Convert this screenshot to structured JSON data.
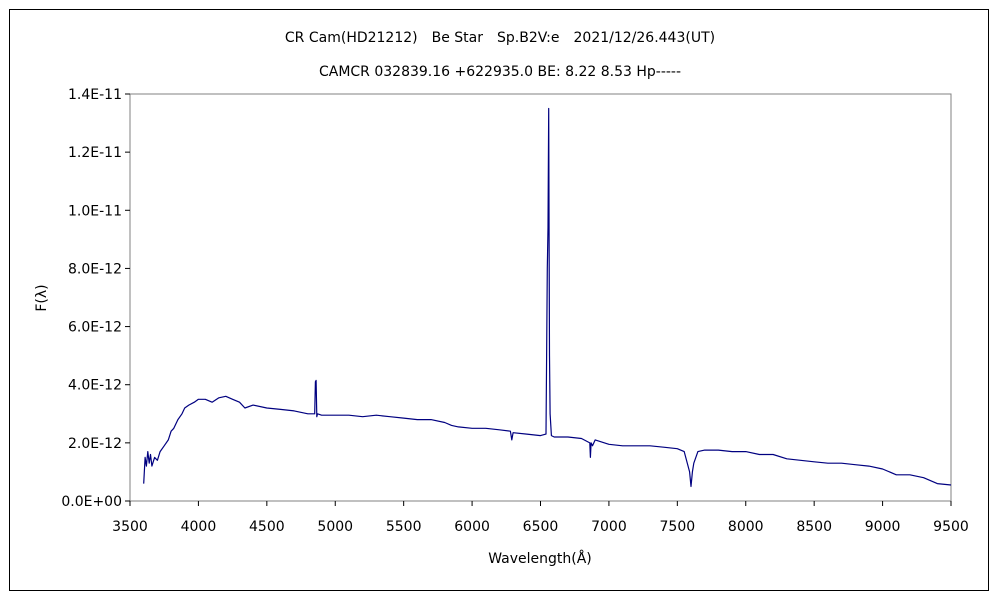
{
  "chart_data": {
    "type": "line",
    "title": "CR Cam(HD21212)　Be Star　Sp.B2V:e　2021/12/26.443(UT)",
    "subtitle": "CAMCR 032839.16 +622935.0 BE: 8.22 8.53 Hp-----",
    "xlabel": "Wavelength(Å)",
    "ylabel": "F(λ)",
    "xlim": [
      3500,
      9500
    ],
    "ylim": [
      0,
      1.4e-11
    ],
    "x_ticks": [
      3500,
      4000,
      4500,
      5000,
      5500,
      6000,
      6500,
      7000,
      7500,
      8000,
      8500,
      9000,
      9500
    ],
    "x_tick_labels": [
      "3500",
      "4000",
      "4500",
      "5000",
      "5500",
      "6000",
      "6500",
      "7000",
      "7500",
      "8000",
      "8500",
      "9000",
      "9500"
    ],
    "y_ticks": [
      0,
      2e-12,
      4e-12,
      6e-12,
      8e-12,
      1e-11,
      1.2e-11,
      1.4e-11
    ],
    "y_tick_labels": [
      "0.0E+00",
      "2.0E-12",
      "4.0E-12",
      "6.0E-12",
      "8.0E-12",
      "1.0E-11",
      "1.2E-11",
      "1.4E-11"
    ],
    "grid": false,
    "legend": "none",
    "series": [
      {
        "color": "#000080",
        "x": [
          3600,
          3610,
          3620,
          3630,
          3640,
          3650,
          3660,
          3680,
          3700,
          3720,
          3750,
          3780,
          3800,
          3820,
          3850,
          3880,
          3900,
          3930,
          3970,
          4000,
          4050,
          4100,
          4150,
          4200,
          4250,
          4300,
          4340,
          4400,
          4500,
          4600,
          4700,
          4800,
          4850,
          4855,
          4860,
          4865,
          4870,
          4900,
          5000,
          5100,
          5200,
          5300,
          5400,
          5500,
          5600,
          5700,
          5800,
          5850,
          5900,
          6000,
          6100,
          6200,
          6280,
          6290,
          6300,
          6400,
          6500,
          6540,
          6550,
          6555,
          6560,
          6563,
          6566,
          6570,
          6575,
          6580,
          6600,
          6700,
          6800,
          6860,
          6865,
          6870,
          6880,
          6900,
          7000,
          7100,
          7200,
          7300,
          7400,
          7500,
          7550,
          7590,
          7600,
          7610,
          7620,
          7650,
          7700,
          7800,
          7900,
          8000,
          8100,
          8200,
          8300,
          8400,
          8500,
          8600,
          8700,
          8800,
          8900,
          9000,
          9100,
          9200,
          9300,
          9400,
          9500
        ],
        "y": [
          6e-13,
          1.5e-12,
          1.2e-12,
          1.7e-12,
          1.3e-12,
          1.6e-12,
          1.2e-12,
          1.5e-12,
          1.4e-12,
          1.7e-12,
          1.9e-12,
          2.1e-12,
          2.4e-12,
          2.5e-12,
          2.8e-12,
          3e-12,
          3.2e-12,
          3.3e-12,
          3.4e-12,
          3.5e-12,
          3.5e-12,
          3.4e-12,
          3.55e-12,
          3.6e-12,
          3.5e-12,
          3.4e-12,
          3.2e-12,
          3.3e-12,
          3.2e-12,
          3.15e-12,
          3.1e-12,
          3e-12,
          3e-12,
          4.1e-12,
          4.15e-12,
          2.9e-12,
          3e-12,
          2.95e-12,
          2.95e-12,
          2.95e-12,
          2.9e-12,
          2.95e-12,
          2.9e-12,
          2.85e-12,
          2.8e-12,
          2.8e-12,
          2.7e-12,
          2.6e-12,
          2.55e-12,
          2.5e-12,
          2.5e-12,
          2.45e-12,
          2.4e-12,
          2.1e-12,
          2.35e-12,
          2.3e-12,
          2.25e-12,
          2.3e-12,
          8e-12,
          9.4e-12,
          1.35e-11,
          9e-12,
          5e-12,
          3e-12,
          2.6e-12,
          2.25e-12,
          2.2e-12,
          2.2e-12,
          2.15e-12,
          2e-12,
          1.5e-12,
          2e-12,
          1.9e-12,
          2.1e-12,
          1.95e-12,
          1.9e-12,
          1.9e-12,
          1.9e-12,
          1.85e-12,
          1.8e-12,
          1.7e-12,
          1e-12,
          5e-13,
          1e-12,
          1.3e-12,
          1.7e-12,
          1.75e-12,
          1.75e-12,
          1.7e-12,
          1.7e-12,
          1.6e-12,
          1.6e-12,
          1.45e-12,
          1.4e-12,
          1.35e-12,
          1.3e-12,
          1.3e-12,
          1.25e-12,
          1.2e-12,
          1.1e-12,
          9e-13,
          9e-13,
          8e-13,
          6e-13,
          5.5e-13
        ]
      }
    ]
  }
}
